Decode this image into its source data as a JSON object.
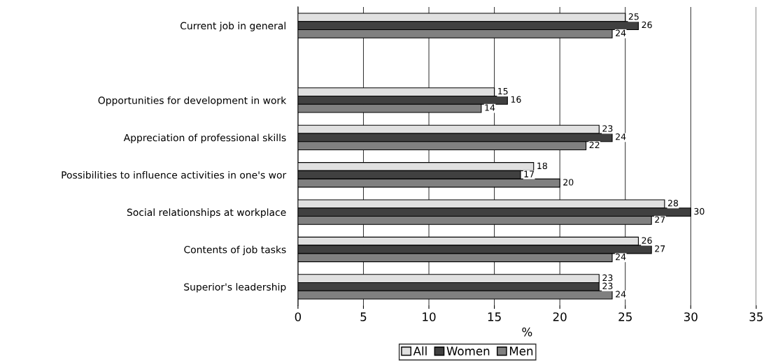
{
  "chart_data": {
    "type": "bar",
    "orientation": "horizontal",
    "xlabel": "%",
    "categories": [
      "Current job in general",
      null,
      "Opportunities for development in work",
      "Appreciation of professional skills",
      "Possibilities to influence activities in one's wor",
      "Social relationships at workplace",
      "Contents of job tasks",
      "Superior's leadership"
    ],
    "series": [
      {
        "name": "All",
        "color": "#e0e0e0",
        "values": [
          25,
          null,
          15,
          23,
          18,
          28,
          26,
          23
        ]
      },
      {
        "name": "Women",
        "color": "#404040",
        "values": [
          26,
          null,
          16,
          24,
          17,
          30,
          27,
          23
        ]
      },
      {
        "name": "Men",
        "color": "#808080",
        "values": [
          24,
          null,
          14,
          22,
          20,
          27,
          24,
          24
        ]
      }
    ],
    "xlim": [
      0,
      35
    ],
    "xticks": [
      0,
      5,
      10,
      15,
      20,
      25,
      30,
      35
    ],
    "grid": "x",
    "legend": "bottom",
    "data_labels": true
  }
}
